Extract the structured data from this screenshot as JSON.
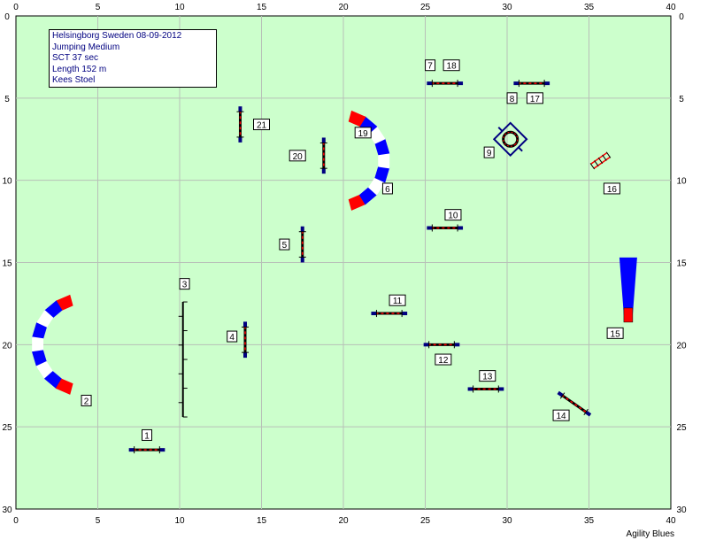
{
  "course_info": {
    "event": "Helsingborg Sweden 08-09-2012",
    "class": "Jumping Medium",
    "sct": "SCT 37 sec",
    "length": "Length 152 m",
    "judge": "Kees Stoel"
  },
  "footer": {
    "brand": "Agility Blues"
  },
  "colors": {
    "field": "#ccffcc",
    "grid": "#b8c0b8",
    "label_fill": "#ffffff",
    "red": "#ff0000",
    "blue": "#0000ff",
    "navy": "#000080"
  },
  "chart_data": {
    "type": "diagram",
    "xlim": [
      0,
      40
    ],
    "ylim": [
      0,
      30
    ],
    "x_ticks": [
      0,
      5,
      10,
      15,
      20,
      25,
      30,
      35,
      40
    ],
    "y_ticks": [
      0,
      5,
      10,
      15,
      20,
      25,
      30
    ],
    "obstacles": [
      {
        "kind": "jump",
        "x": 8.0,
        "y": 26.4,
        "angle": 0,
        "len": 2.2
      },
      {
        "kind": "tunnel",
        "x": 1.3,
        "y": 20.0,
        "angle": 0,
        "len": 0
      },
      {
        "kind": "wall",
        "x": 10.2,
        "y": 20.9,
        "angle": 90,
        "len": 7.0
      },
      {
        "kind": "jump",
        "x": 14.0,
        "y": 19.7,
        "angle": 90,
        "len": 2.2
      },
      {
        "kind": "jump",
        "x": 17.5,
        "y": 13.9,
        "angle": 90,
        "len": 2.2
      },
      {
        "kind": "tunnel",
        "x": 22.5,
        "y": 8.8,
        "angle": 180,
        "len": 0
      },
      {
        "kind": "jump",
        "x": 26.2,
        "y": 4.1,
        "angle": 0,
        "len": 2.2
      },
      {
        "kind": "jump",
        "x": 31.5,
        "y": 4.1,
        "angle": 0,
        "len": 2.2
      },
      {
        "kind": "tire",
        "x": 30.2,
        "y": 7.5,
        "angle": 45,
        "len": 1.5
      },
      {
        "kind": "jump",
        "x": 26.2,
        "y": 12.9,
        "angle": 0,
        "len": 2.2
      },
      {
        "kind": "jump",
        "x": 22.8,
        "y": 18.1,
        "angle": 0,
        "len": 2.2
      },
      {
        "kind": "jump",
        "x": 26.0,
        "y": 20.0,
        "angle": 0,
        "len": 2.2
      },
      {
        "kind": "jump",
        "x": 28.7,
        "y": 22.7,
        "angle": 0,
        "len": 2.2
      },
      {
        "kind": "jump",
        "x": 34.1,
        "y": 23.6,
        "angle": 35,
        "len": 2.4
      },
      {
        "kind": "chute",
        "x": 37.4,
        "y": 14.7,
        "angle": 0,
        "len": 0
      },
      {
        "kind": "ladder",
        "x": 35.7,
        "y": 8.8,
        "angle": -35,
        "len": 1.2
      },
      {
        "kind": "jump",
        "x": 18.8,
        "y": 8.5,
        "angle": 90,
        "len": 2.2
      },
      {
        "kind": "jump",
        "x": 13.7,
        "y": 6.6,
        "angle": 90,
        "len": 2.2
      }
    ],
    "labels": [
      {
        "text": "1",
        "x": 8.0,
        "y": 25.5
      },
      {
        "text": "2",
        "x": 4.3,
        "y": 23.4
      },
      {
        "text": "3",
        "x": 10.3,
        "y": 16.3
      },
      {
        "text": "4",
        "x": 13.2,
        "y": 19.5
      },
      {
        "text": "5",
        "x": 16.4,
        "y": 13.9
      },
      {
        "text": "6",
        "x": 22.7,
        "y": 10.5
      },
      {
        "text": "7",
        "x": 25.3,
        "y": 3.0
      },
      {
        "text": "18",
        "x": 26.6,
        "y": 3.0
      },
      {
        "text": "8",
        "x": 30.3,
        "y": 5.0
      },
      {
        "text": "17",
        "x": 31.7,
        "y": 5.0
      },
      {
        "text": "9",
        "x": 28.9,
        "y": 8.3
      },
      {
        "text": "10",
        "x": 26.7,
        "y": 12.1
      },
      {
        "text": "11",
        "x": 23.3,
        "y": 17.3
      },
      {
        "text": "12",
        "x": 26.1,
        "y": 20.9
      },
      {
        "text": "13",
        "x": 28.8,
        "y": 21.9
      },
      {
        "text": "14",
        "x": 33.3,
        "y": 24.3
      },
      {
        "text": "15",
        "x": 36.6,
        "y": 19.3
      },
      {
        "text": "16",
        "x": 36.4,
        "y": 10.5
      },
      {
        "text": "19",
        "x": 21.2,
        "y": 7.1
      },
      {
        "text": "20",
        "x": 17.2,
        "y": 8.5
      },
      {
        "text": "21",
        "x": 15.0,
        "y": 6.6
      }
    ]
  }
}
